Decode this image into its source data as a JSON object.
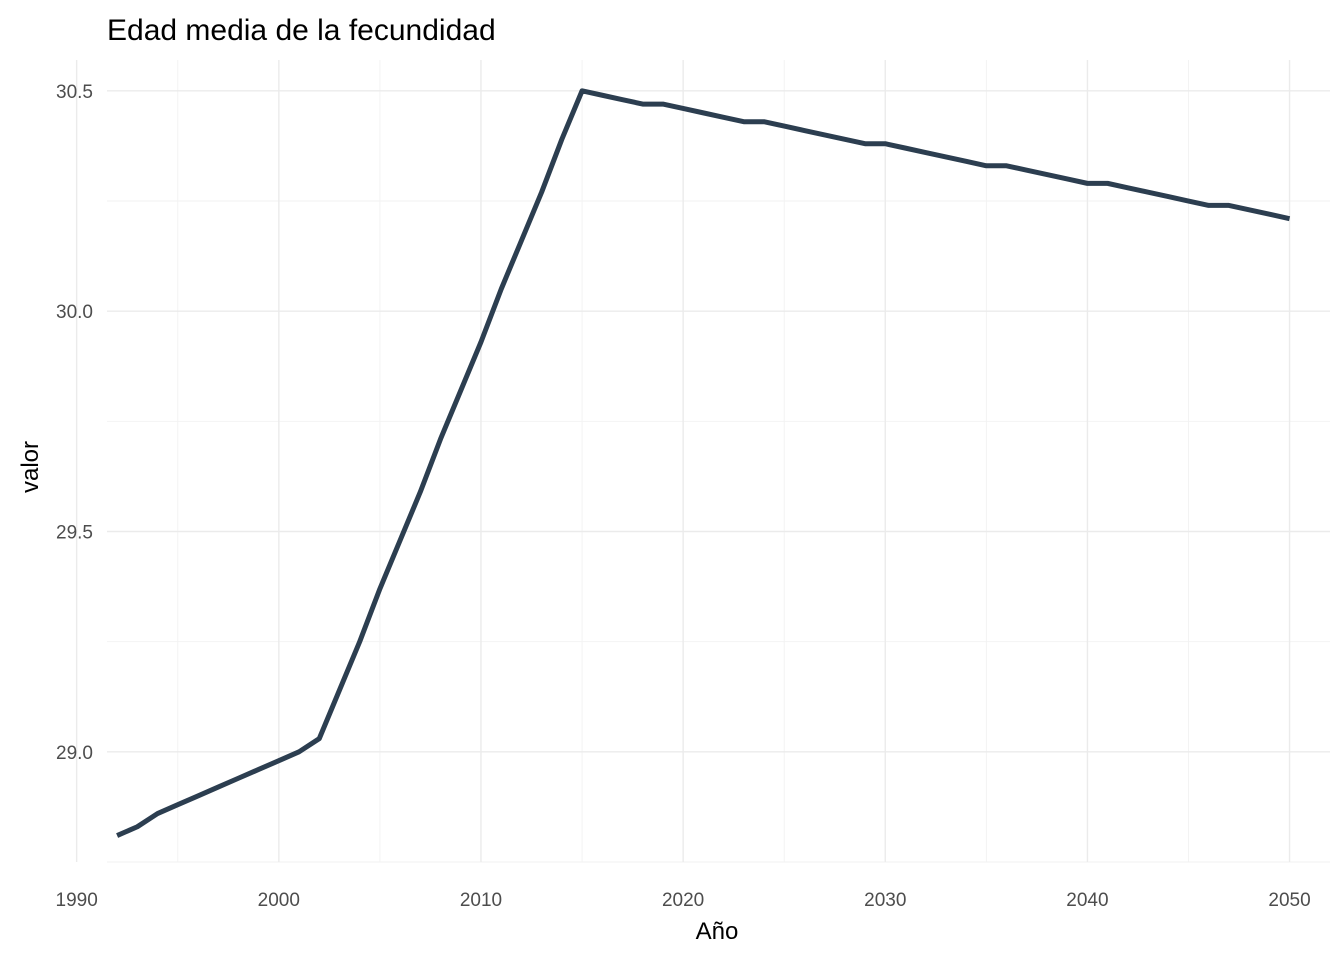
{
  "chart_data": {
    "type": "line",
    "title": "Edad media de la fecundidad",
    "xlabel": "Año",
    "ylabel": "valor",
    "xlim": [
      1991.5,
      2052
    ],
    "ylim": [
      28.75,
      30.57
    ],
    "x_ticks": [
      1990,
      2000,
      2010,
      2020,
      2030,
      2040,
      2050
    ],
    "x_tick_labels": [
      "1990",
      "2000",
      "2010",
      "2020",
      "2030",
      "2040",
      "2050"
    ],
    "y_ticks": [
      29.0,
      29.5,
      30.0,
      30.5
    ],
    "y_tick_labels": [
      "29.0",
      "29.5",
      "30.0",
      "30.5"
    ],
    "grid": true,
    "legend": "none",
    "colors": {
      "line": "#2c3e50",
      "grid": "#ebebeb"
    },
    "series": [
      {
        "x": [
          1992,
          1993,
          1994,
          1995,
          1996,
          1997,
          1998,
          1999,
          2000,
          2001,
          2002,
          2003,
          2004,
          2005,
          2006,
          2007,
          2008,
          2009,
          2010,
          2011,
          2012,
          2013,
          2014,
          2015,
          2016,
          2017,
          2018,
          2019,
          2020,
          2021,
          2022,
          2023,
          2024,
          2025,
          2026,
          2027,
          2028,
          2029,
          2030,
          2031,
          2032,
          2033,
          2034,
          2035,
          2036,
          2037,
          2038,
          2039,
          2040,
          2041,
          2042,
          2043,
          2044,
          2045,
          2046,
          2047,
          2048,
          2049,
          2050
        ],
        "values": [
          28.81,
          28.83,
          28.86,
          28.88,
          28.9,
          28.92,
          28.94,
          28.96,
          28.98,
          29.0,
          29.03,
          29.14,
          29.25,
          29.37,
          29.48,
          29.59,
          29.71,
          29.82,
          29.93,
          30.05,
          30.16,
          30.27,
          30.39,
          30.5,
          30.49,
          30.48,
          30.47,
          30.47,
          30.46,
          30.45,
          30.44,
          30.43,
          30.43,
          30.42,
          30.41,
          30.4,
          30.39,
          30.38,
          30.38,
          30.37,
          30.36,
          30.35,
          30.34,
          30.33,
          30.33,
          30.32,
          30.31,
          30.3,
          30.29,
          30.29,
          30.28,
          30.27,
          30.26,
          30.25,
          30.24,
          30.24,
          30.23,
          30.22,
          30.21
        ]
      }
    ]
  }
}
